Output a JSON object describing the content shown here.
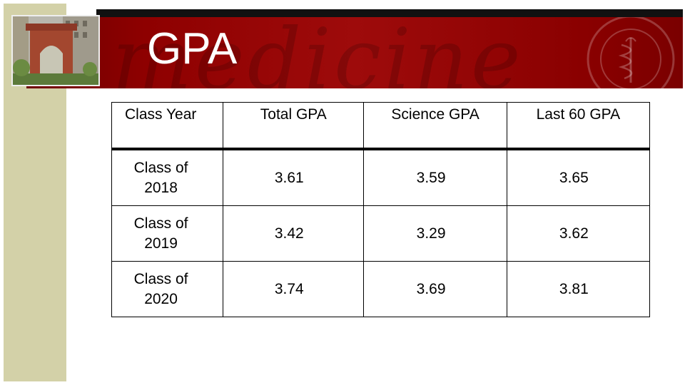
{
  "header": {
    "title": "GPA"
  },
  "table": {
    "columns": [
      "Class Year",
      "Total GPA",
      "Science GPA",
      "Last 60 GPA"
    ],
    "rows": [
      {
        "class_line1": "Class of",
        "class_line2": "2018",
        "total": "3.61",
        "science": "3.59",
        "last60": "3.65"
      },
      {
        "class_line1": "Class of",
        "class_line2": "2019",
        "total": "3.42",
        "science": "3.29",
        "last60": "3.62"
      },
      {
        "class_line1": "Class of",
        "class_line2": "2020",
        "total": "3.74",
        "science": "3.69",
        "last60": "3.81"
      }
    ]
  },
  "colors": {
    "banner_red": "#9e0b0b",
    "sidebar_tan": "#d3d1a8",
    "title_text": "#ffffff"
  }
}
